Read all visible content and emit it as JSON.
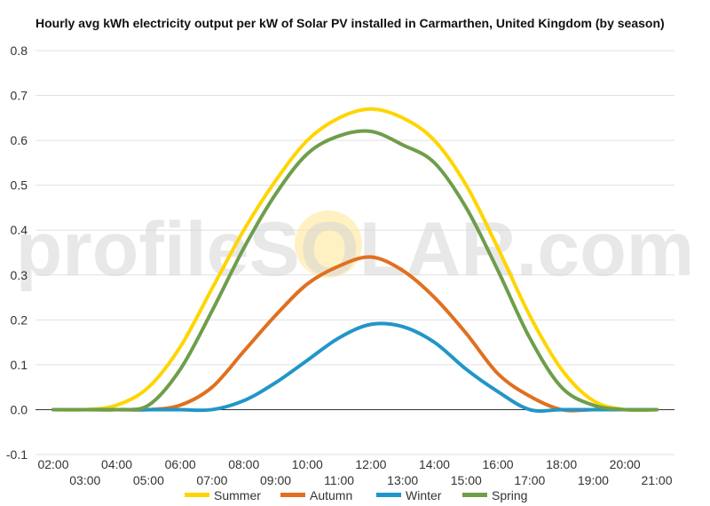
{
  "chart_data": {
    "type": "line",
    "title": "Hourly avg kWh electricity output per kW of Solar PV installed in Carmarthen, United Kingdom (by season)",
    "xlabel": "",
    "ylabel": "",
    "ylim": [
      -0.1,
      0.8
    ],
    "yticks": [
      "-0.1",
      "0.0",
      "0.1",
      "0.2",
      "0.3",
      "0.4",
      "0.5",
      "0.6",
      "0.7",
      "0.8"
    ],
    "x": [
      "02:00",
      "03:00",
      "04:00",
      "05:00",
      "06:00",
      "07:00",
      "08:00",
      "09:00",
      "10:00",
      "11:00",
      "12:00",
      "13:00",
      "14:00",
      "15:00",
      "16:00",
      "17:00",
      "18:00",
      "19:00",
      "20:00",
      "21:00"
    ],
    "grid": true,
    "legend_position": "bottom",
    "watermark": "profileSOLAR.com",
    "series": [
      {
        "name": "Summer",
        "color": "#FFD500",
        "values": [
          0.0,
          0.0,
          0.01,
          0.05,
          0.14,
          0.27,
          0.4,
          0.51,
          0.6,
          0.65,
          0.67,
          0.65,
          0.6,
          0.5,
          0.36,
          0.21,
          0.09,
          0.02,
          0.0,
          0.0
        ]
      },
      {
        "name": "Autumn",
        "color": "#E07020",
        "values": [
          0.0,
          0.0,
          0.0,
          0.0,
          0.01,
          0.05,
          0.13,
          0.21,
          0.28,
          0.32,
          0.34,
          0.31,
          0.25,
          0.17,
          0.08,
          0.03,
          0.0,
          0.0,
          0.0,
          0.0
        ]
      },
      {
        "name": "Winter",
        "color": "#2196C8",
        "values": [
          0.0,
          0.0,
          0.0,
          0.0,
          0.0,
          0.0,
          0.02,
          0.06,
          0.11,
          0.16,
          0.19,
          0.185,
          0.15,
          0.09,
          0.04,
          0.0,
          0.0,
          0.0,
          0.0,
          0.0
        ]
      },
      {
        "name": "Spring",
        "color": "#6E9E4B",
        "values": [
          0.0,
          0.0,
          0.0,
          0.01,
          0.09,
          0.22,
          0.36,
          0.48,
          0.57,
          0.61,
          0.62,
          0.59,
          0.55,
          0.45,
          0.31,
          0.16,
          0.05,
          0.01,
          0.0,
          0.0
        ]
      }
    ]
  },
  "colors": {
    "grid": "#e0e0e0",
    "zero_line": "#333333",
    "sun": "#FFE89A"
  }
}
